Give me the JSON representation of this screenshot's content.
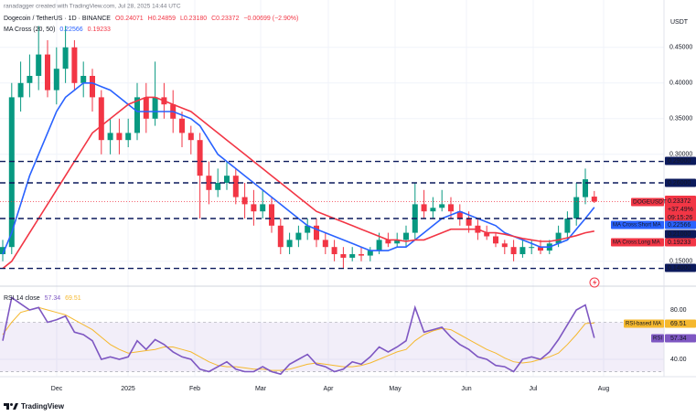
{
  "header": {
    "attribution": "ranadagger created with TradingView.com, Jul 28, 2025 14:44 UTC",
    "symbol": "Dogecoin / TetherUS · 1D · BINANCE",
    "ohlc": [
      "O0.24071",
      "H0.24859",
      "L0.23180",
      "C0.23372",
      "−0.00699 (−2.90%)"
    ]
  },
  "footer": {
    "brand": "TradingView"
  },
  "chart_data": [
    {
      "type": "candlestick",
      "currency": "USDT",
      "indicator_label": "MA Cross (20, 50)",
      "up_color": "#089981",
      "down_color": "#f23645",
      "x_labels": [
        "Dec",
        "2025",
        "Feb",
        "Mar",
        "Apr",
        "May",
        "Jun",
        "Jul",
        "Aug"
      ],
      "open": [
        0.16,
        0.17,
        0.38,
        0.4,
        0.41,
        0.44,
        0.39,
        0.42,
        0.45,
        0.4,
        0.41,
        0.38,
        0.32,
        0.33,
        0.32,
        0.33,
        0.38,
        0.35,
        0.38,
        0.37,
        0.35,
        0.33,
        0.32,
        0.27,
        0.25,
        0.26,
        0.27,
        0.24,
        0.23,
        0.22,
        0.23,
        0.2,
        0.17,
        0.18,
        0.19,
        0.2,
        0.18,
        0.17,
        0.16,
        0.155,
        0.16,
        0.158,
        0.165,
        0.18,
        0.175,
        0.18,
        0.19,
        0.23,
        0.22,
        0.225,
        0.23,
        0.22,
        0.21,
        0.2,
        0.19,
        0.185,
        0.175,
        0.17,
        0.16,
        0.17,
        0.17,
        0.165,
        0.175,
        0.19,
        0.21,
        0.24,
        0.24071
      ],
      "high": [
        0.18,
        0.4,
        0.43,
        0.44,
        0.48,
        0.46,
        0.45,
        0.48,
        0.46,
        0.43,
        0.42,
        0.39,
        0.35,
        0.35,
        0.35,
        0.4,
        0.4,
        0.43,
        0.4,
        0.39,
        0.36,
        0.34,
        0.33,
        0.29,
        0.28,
        0.29,
        0.28,
        0.26,
        0.25,
        0.25,
        0.24,
        0.21,
        0.19,
        0.2,
        0.21,
        0.21,
        0.19,
        0.18,
        0.17,
        0.17,
        0.17,
        0.17,
        0.19,
        0.19,
        0.19,
        0.2,
        0.26,
        0.25,
        0.24,
        0.25,
        0.24,
        0.23,
        0.22,
        0.21,
        0.2,
        0.19,
        0.18,
        0.18,
        0.18,
        0.18,
        0.18,
        0.18,
        0.2,
        0.22,
        0.26,
        0.28,
        0.24859
      ],
      "low": [
        0.15,
        0.16,
        0.36,
        0.38,
        0.39,
        0.38,
        0.37,
        0.4,
        0.39,
        0.38,
        0.36,
        0.3,
        0.3,
        0.3,
        0.31,
        0.32,
        0.33,
        0.34,
        0.35,
        0.33,
        0.31,
        0.3,
        0.21,
        0.23,
        0.24,
        0.25,
        0.23,
        0.21,
        0.2,
        0.21,
        0.19,
        0.16,
        0.16,
        0.17,
        0.18,
        0.17,
        0.16,
        0.15,
        0.14,
        0.15,
        0.15,
        0.15,
        0.16,
        0.17,
        0.17,
        0.17,
        0.18,
        0.21,
        0.21,
        0.22,
        0.21,
        0.2,
        0.19,
        0.18,
        0.18,
        0.17,
        0.16,
        0.15,
        0.155,
        0.16,
        0.16,
        0.16,
        0.17,
        0.18,
        0.2,
        0.23,
        0.2318
      ],
      "close": [
        0.17,
        0.38,
        0.4,
        0.41,
        0.44,
        0.39,
        0.42,
        0.45,
        0.4,
        0.41,
        0.38,
        0.32,
        0.33,
        0.32,
        0.33,
        0.38,
        0.35,
        0.38,
        0.37,
        0.35,
        0.33,
        0.32,
        0.27,
        0.25,
        0.26,
        0.27,
        0.24,
        0.23,
        0.22,
        0.23,
        0.2,
        0.17,
        0.18,
        0.19,
        0.2,
        0.18,
        0.17,
        0.16,
        0.155,
        0.16,
        0.158,
        0.165,
        0.18,
        0.175,
        0.18,
        0.19,
        0.23,
        0.22,
        0.225,
        0.23,
        0.22,
        0.21,
        0.2,
        0.19,
        0.185,
        0.175,
        0.17,
        0.16,
        0.17,
        0.17,
        0.165,
        0.175,
        0.19,
        0.21,
        0.24,
        0.265,
        0.23372
      ],
      "series": [
        {
          "name": "MA Cross:Short MA",
          "color": "#2962ff",
          "last": {
            "value": 0.22566,
            "label": "0.22566"
          },
          "values": [
            0.16,
            0.19,
            0.23,
            0.27,
            0.3,
            0.33,
            0.36,
            0.38,
            0.39,
            0.4,
            0.4,
            0.395,
            0.39,
            0.38,
            0.37,
            0.36,
            0.36,
            0.36,
            0.36,
            0.36,
            0.355,
            0.35,
            0.34,
            0.32,
            0.3,
            0.29,
            0.28,
            0.27,
            0.26,
            0.25,
            0.24,
            0.23,
            0.22,
            0.21,
            0.2,
            0.195,
            0.19,
            0.185,
            0.18,
            0.175,
            0.17,
            0.165,
            0.165,
            0.165,
            0.17,
            0.17,
            0.18,
            0.19,
            0.2,
            0.21,
            0.215,
            0.22,
            0.215,
            0.21,
            0.205,
            0.2,
            0.19,
            0.185,
            0.18,
            0.175,
            0.17,
            0.17,
            0.175,
            0.18,
            0.195,
            0.21,
            0.22566
          ]
        },
        {
          "name": "MA Cross:Long MA",
          "color": "#f23645",
          "last": {
            "value": 0.19233,
            "label": "0.19233"
          },
          "values": [
            0.14,
            0.15,
            0.17,
            0.19,
            0.21,
            0.23,
            0.25,
            0.27,
            0.29,
            0.31,
            0.33,
            0.34,
            0.35,
            0.36,
            0.37,
            0.375,
            0.38,
            0.38,
            0.375,
            0.37,
            0.365,
            0.36,
            0.35,
            0.34,
            0.33,
            0.32,
            0.31,
            0.3,
            0.29,
            0.28,
            0.27,
            0.26,
            0.25,
            0.24,
            0.23,
            0.22,
            0.215,
            0.21,
            0.205,
            0.2,
            0.195,
            0.19,
            0.185,
            0.18,
            0.18,
            0.178,
            0.18,
            0.18,
            0.185,
            0.19,
            0.195,
            0.195,
            0.195,
            0.195,
            0.19,
            0.19,
            0.188,
            0.185,
            0.182,
            0.18,
            0.178,
            0.178,
            0.18,
            0.183,
            0.186,
            0.19,
            0.19233
          ]
        }
      ],
      "last_price": {
        "symbol": "DOGEUSDT",
        "value": 0.23372,
        "label": "0.23372",
        "change": "+37.49%",
        "countdown": "09:15:26",
        "color": "#f23645"
      },
      "levels": [
        {
          "value": 0.29,
          "label": "0.29000"
        },
        {
          "value": 0.26,
          "label": "0.26000"
        },
        {
          "value": 0.21,
          "label": "0.21000"
        },
        {
          "value": 0.14,
          "label": "0.14000"
        }
      ],
      "ylim": [
        0.1164,
        0.5164
      ],
      "yticks": [
        {
          "value": 0.15,
          "label": "0.15000"
        },
        {
          "value": 0.3,
          "label": "0.30000"
        },
        {
          "value": 0.35,
          "label": "0.35000"
        },
        {
          "value": 0.4,
          "label": "0.40000"
        },
        {
          "value": 0.45,
          "label": "0.45000"
        }
      ],
      "grid": true
    },
    {
      "type": "line",
      "title": "RSI 14 close",
      "band": [
        30,
        70
      ],
      "band_color": "#7e57c2",
      "ylim": [
        25.9,
        97.8
      ],
      "yticks": [
        {
          "value": 80,
          "label": "80.00"
        },
        {
          "value": 40,
          "label": "40.00"
        }
      ],
      "series": [
        {
          "name": "RSI",
          "color": "#7e57c2",
          "last": {
            "value": 57.34,
            "label": "57.34"
          },
          "values": [
            55,
            90,
            85,
            80,
            82,
            70,
            72,
            75,
            62,
            60,
            55,
            40,
            42,
            40,
            42,
            55,
            48,
            56,
            52,
            46,
            42,
            40,
            32,
            30,
            34,
            38,
            32,
            30,
            30,
            34,
            30,
            28,
            36,
            40,
            44,
            36,
            34,
            30,
            32,
            38,
            36,
            42,
            50,
            46,
            50,
            55,
            82,
            62,
            64,
            66,
            58,
            52,
            48,
            42,
            40,
            35,
            34,
            30,
            40,
            42,
            40,
            46,
            56,
            68,
            80,
            84,
            57.34
          ]
        },
        {
          "name": "RSI-based MA",
          "color": "#f5b82e",
          "last": {
            "value": 69.51,
            "label": "69.51"
          },
          "values": [
            60,
            70,
            78,
            80,
            82,
            80,
            78,
            76,
            72,
            68,
            64,
            58,
            52,
            48,
            45,
            46,
            47,
            48,
            50,
            50,
            48,
            46,
            42,
            38,
            35,
            34,
            34,
            33,
            32,
            32,
            31,
            31,
            32,
            34,
            36,
            37,
            36,
            35,
            34,
            34,
            35,
            37,
            40,
            43,
            46,
            48,
            55,
            60,
            63,
            65,
            64,
            60,
            56,
            52,
            48,
            45,
            41,
            38,
            37,
            38,
            40,
            42,
            45,
            52,
            60,
            69,
            69.51
          ]
        }
      ]
    }
  ]
}
